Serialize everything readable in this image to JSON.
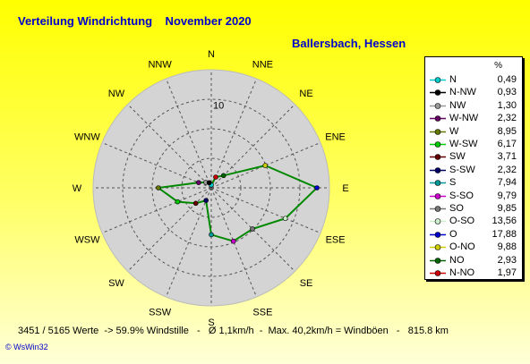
{
  "title": "Verteilung Windrichtung    November 2020",
  "station": "Ballersbach, Hessen",
  "footer": "3451 / 5165 Werte  -> 59.9% Windstille   -   Ø 1,1km/h  -  Max. 40,2km/h = Windböen   -   815.8 km",
  "credit": "© WsWin32",
  "legend_unit": "%",
  "chart_data": {
    "type": "polar-line",
    "ring_label": "10",
    "rmax": 20,
    "ring_step": 5,
    "series_color": "#008800",
    "directions": [
      {
        "label": "N",
        "angle": 0
      },
      {
        "label": "NNE",
        "angle": 22.5
      },
      {
        "label": "NE",
        "angle": 45
      },
      {
        "label": "ENE",
        "angle": 67.5
      },
      {
        "label": "E",
        "angle": 90
      },
      {
        "label": "ESE",
        "angle": 112.5
      },
      {
        "label": "SE",
        "angle": 135
      },
      {
        "label": "SSE",
        "angle": 157.5
      },
      {
        "label": "S",
        "angle": 180
      },
      {
        "label": "SSW",
        "angle": 202.5
      },
      {
        "label": "SW",
        "angle": 225
      },
      {
        "label": "WSW",
        "angle": 247.5
      },
      {
        "label": "W",
        "angle": 270
      },
      {
        "label": "WNW",
        "angle": 292.5
      },
      {
        "label": "NW",
        "angle": 315
      },
      {
        "label": "NNW",
        "angle": 337.5
      }
    ],
    "legend": [
      {
        "name": "N",
        "value": "0,49",
        "color": "#00cccc"
      },
      {
        "name": "N-NW",
        "value": "0,93",
        "color": "#000000"
      },
      {
        "name": "NW",
        "value": "1,30",
        "color": "#999999"
      },
      {
        "name": "W-NW",
        "value": "2,32",
        "color": "#660066"
      },
      {
        "name": "W",
        "value": "8,95",
        "color": "#667700"
      },
      {
        "name": "W-SW",
        "value": "6,17",
        "color": "#00cc00"
      },
      {
        "name": "SW",
        "value": "3,71",
        "color": "#660000"
      },
      {
        "name": "S-SW",
        "value": "2,32",
        "color": "#000066"
      },
      {
        "name": "S",
        "value": "7,94",
        "color": "#009999"
      },
      {
        "name": "S-SO",
        "value": "9,79",
        "color": "#cc00cc"
      },
      {
        "name": "SO",
        "value": "9,85",
        "color": "#777777"
      },
      {
        "name": "O-SO",
        "value": "13,56",
        "color": "#cceecc"
      },
      {
        "name": "O",
        "value": "17,88",
        "color": "#0000cc"
      },
      {
        "name": "O-NO",
        "value": "9,88",
        "color": "#cccc00"
      },
      {
        "name": "NO",
        "value": "2,93",
        "color": "#006600"
      },
      {
        "name": "N-NO",
        "value": "1,97",
        "color": "#cc0000"
      }
    ],
    "points": [
      {
        "dir": "N",
        "angle": 0,
        "value": 0.49,
        "color": "#00cccc"
      },
      {
        "dir": "NNE",
        "angle": 22.5,
        "value": 1.97,
        "color": "#cc0000"
      },
      {
        "dir": "NE",
        "angle": 45,
        "value": 2.93,
        "color": "#006600"
      },
      {
        "dir": "ENE",
        "angle": 67.5,
        "value": 9.88,
        "color": "#cccc00"
      },
      {
        "dir": "E",
        "angle": 90,
        "value": 17.88,
        "color": "#0000cc"
      },
      {
        "dir": "ESE",
        "angle": 112.5,
        "value": 13.56,
        "color": "#cceecc"
      },
      {
        "dir": "SE",
        "angle": 135,
        "value": 9.85,
        "color": "#777777"
      },
      {
        "dir": "SSE",
        "angle": 157.5,
        "value": 9.79,
        "color": "#cc00cc"
      },
      {
        "dir": "S",
        "angle": 180,
        "value": 7.94,
        "color": "#009999"
      },
      {
        "dir": "SSW",
        "angle": 202.5,
        "value": 2.32,
        "color": "#000066"
      },
      {
        "dir": "SW",
        "angle": 225,
        "value": 3.71,
        "color": "#660000"
      },
      {
        "dir": "WSW",
        "angle": 247.5,
        "value": 6.17,
        "color": "#00cc00"
      },
      {
        "dir": "W",
        "angle": 270,
        "value": 8.95,
        "color": "#667700"
      },
      {
        "dir": "WNW",
        "angle": 292.5,
        "value": 2.32,
        "color": "#660066"
      },
      {
        "dir": "NW",
        "angle": 315,
        "value": 1.3,
        "color": "#999999"
      },
      {
        "dir": "NNW",
        "angle": 337.5,
        "value": 0.93,
        "color": "#000000"
      }
    ]
  }
}
